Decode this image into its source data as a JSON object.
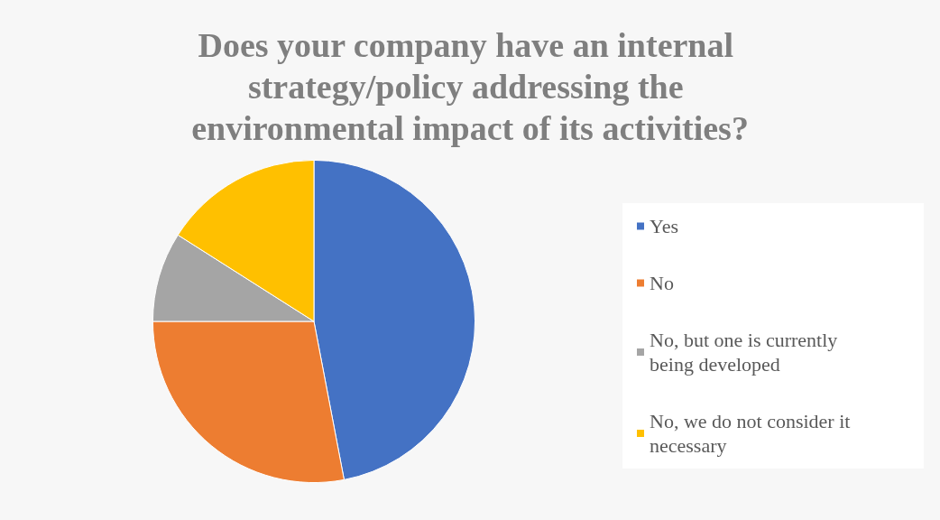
{
  "chart_data": {
    "type": "pie",
    "title": "Does your company have an internal strategy/policy addressing the environmental impact of its activities?",
    "categories": [
      "Yes",
      "No",
      "No, but one is currently being developed",
      "No, we do not consider it necessary"
    ],
    "values": [
      47,
      28,
      9,
      16
    ],
    "colors": [
      "#4472c4",
      "#ed7d31",
      "#a5a5a5",
      "#ffc000"
    ],
    "legend": "right"
  }
}
